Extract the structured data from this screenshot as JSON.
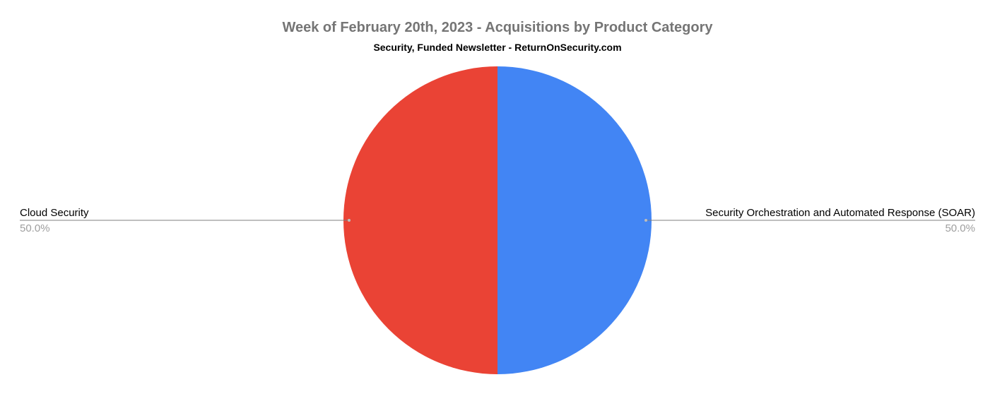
{
  "chart_data": {
    "type": "pie",
    "title": "Week of February 20th, 2023 - Acquisitions by Product Category",
    "subtitle": "Security, Funded Newsletter - ReturnOnSecurity.com",
    "slices": [
      {
        "label": "Security Orchestration and Automated Response (SOAR)",
        "value": 50.0,
        "pct_label": "50.0%",
        "color": "#4285f4"
      },
      {
        "label": "Cloud Security",
        "value": 50.0,
        "pct_label": "50.0%",
        "color": "#ea4335"
      }
    ],
    "legend": "none",
    "data_labels": "outside with leader lines"
  }
}
